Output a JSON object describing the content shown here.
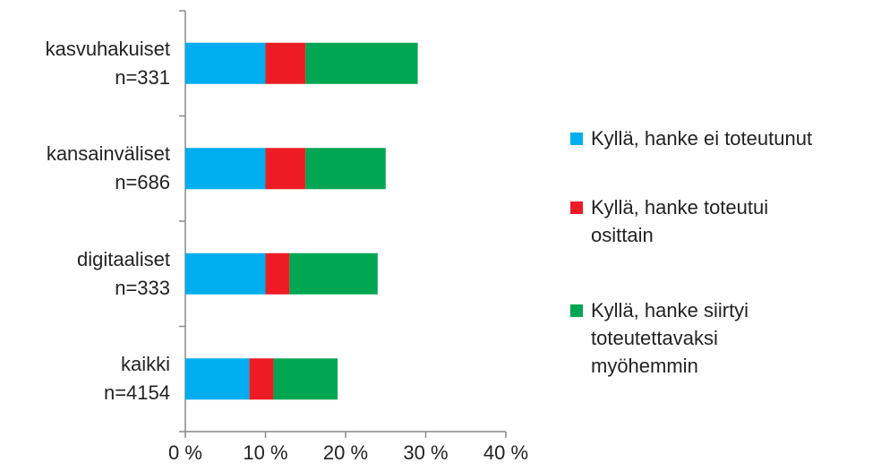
{
  "chart_data": {
    "type": "stacked-barh",
    "categories": [
      "kasvuhakuiset\nn=331",
      "kansainväliset\nn=686",
      "digitaaliset\nn=333",
      "kaikki\nn=4154"
    ],
    "series": [
      {
        "name": "Kyllä, hanke ei toteutunut",
        "color": "#00adef",
        "values": [
          10,
          10,
          10,
          8
        ]
      },
      {
        "name": "Kyllä, hanke toteutui\nosittain",
        "color": "#ed1c24",
        "values": [
          5,
          5,
          3,
          3
        ]
      },
      {
        "name": "Kyllä, hanke siirtyi\ntoteutettavaksi\nmyöhemmin",
        "color": "#00a651",
        "values": [
          14,
          10,
          11,
          8
        ]
      }
    ],
    "xlim": [
      0,
      40
    ],
    "xticks": [
      {
        "value": 0,
        "label": "0 %"
      },
      {
        "value": 10,
        "label": "10 %"
      },
      {
        "value": 20,
        "label": "20 %"
      },
      {
        "value": 30,
        "label": "30 %"
      },
      {
        "value": 40,
        "label": "40 %"
      }
    ],
    "legend": "right",
    "grid": false
  }
}
